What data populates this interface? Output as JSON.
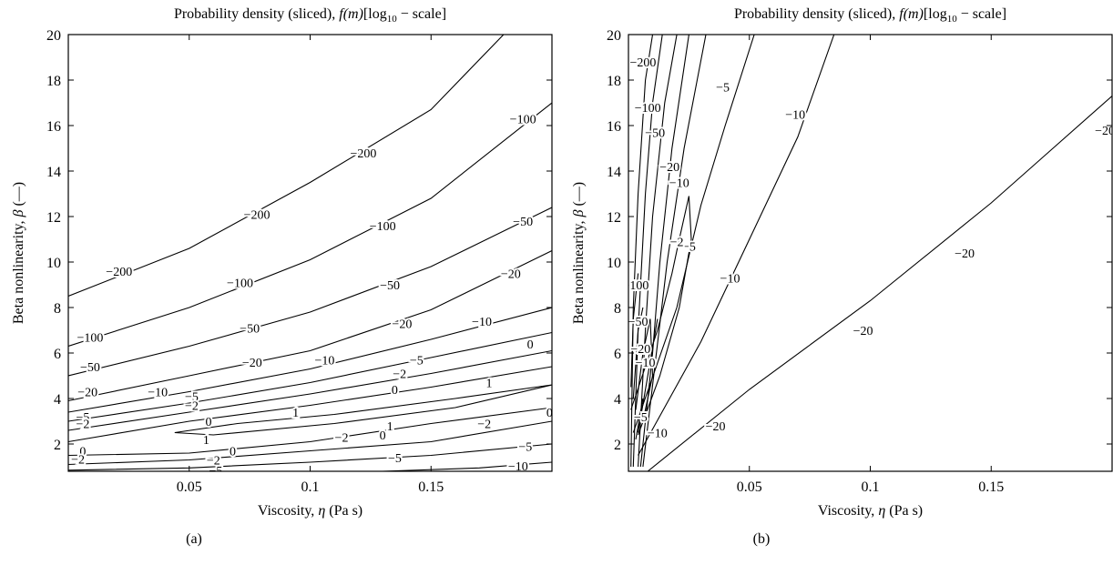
{
  "chart_data": [
    {
      "type": "contour",
      "panel_label": "(a)",
      "title_prefix": "Probability density (sliced), ",
      "title_math": "f(m)",
      "title_bracket_open": "[log",
      "title_subscript": "10",
      "title_suffix": " − scale]",
      "xlabel_prefix": "Viscosity, ",
      "xlabel_symbol": "η",
      "xlabel_suffix": " (Pa s)",
      "ylabel_prefix": "Beta nonlinearity, ",
      "ylabel_symbol": "β",
      "ylabel_suffix": " (—)",
      "xlim": [
        0.0,
        0.2
      ],
      "ylim": [
        0.8,
        20
      ],
      "xticks": [
        0.05,
        0.1,
        0.15
      ],
      "yticks": [
        2,
        4,
        6,
        8,
        10,
        12,
        14,
        16,
        18,
        20
      ],
      "contours": [
        {
          "level": "−200",
          "points": [
            [
              0.0,
              8.5
            ],
            [
              0.05,
              10.6
            ],
            [
              0.1,
              13.5
            ],
            [
              0.15,
              16.7
            ],
            [
              0.18,
              20.0
            ]
          ],
          "labels": [
            [
              0.021,
              9.6
            ],
            [
              0.078,
              12.1
            ],
            [
              0.122,
              14.8
            ]
          ]
        },
        {
          "level": "−100",
          "points": [
            [
              0.0,
              6.3
            ],
            [
              0.05,
              8.0
            ],
            [
              0.1,
              10.1
            ],
            [
              0.15,
              12.8
            ],
            [
              0.2,
              17.0
            ]
          ],
          "labels": [
            [
              0.009,
              6.7
            ],
            [
              0.071,
              9.1
            ],
            [
              0.13,
              11.6
            ],
            [
              0.188,
              16.3
            ]
          ]
        },
        {
          "level": "−50",
          "points": [
            [
              0.0,
              5.0
            ],
            [
              0.05,
              6.3
            ],
            [
              0.1,
              7.8
            ],
            [
              0.15,
              9.8
            ],
            [
              0.2,
              12.4
            ]
          ],
          "labels": [
            [
              0.009,
              5.4
            ],
            [
              0.075,
              7.1
            ],
            [
              0.133,
              9.0
            ],
            [
              0.188,
              11.8
            ]
          ]
        },
        {
          "level": "−20",
          "points": [
            [
              0.0,
              3.9
            ],
            [
              0.05,
              5.0
            ],
            [
              0.1,
              6.1
            ],
            [
              0.15,
              7.9
            ],
            [
              0.2,
              10.5
            ]
          ],
          "labels": [
            [
              0.008,
              4.3
            ],
            [
              0.076,
              5.6
            ],
            [
              0.138,
              7.3
            ],
            [
              0.183,
              9.5
            ]
          ]
        },
        {
          "level": "−10",
          "points": [
            [
              0.0,
              3.4
            ],
            [
              0.05,
              4.3
            ],
            [
              0.1,
              5.3
            ],
            [
              0.15,
              6.6
            ],
            [
              0.2,
              8.0
            ]
          ],
          "labels": [
            [
              0.037,
              4.3
            ],
            [
              0.106,
              5.7
            ],
            [
              0.171,
              7.4
            ]
          ]
        },
        {
          "level": "−5",
          "points": [
            [
              0.0,
              3.0
            ],
            [
              0.05,
              3.8
            ],
            [
              0.1,
              4.7
            ],
            [
              0.15,
              5.8
            ],
            [
              0.2,
              6.9
            ]
          ],
          "labels": [
            [
              0.006,
              3.2
            ],
            [
              0.051,
              4.1
            ],
            [
              0.144,
              5.7
            ]
          ]
        },
        {
          "level": "−2",
          "points": [
            [
              0.0,
              2.6
            ],
            [
              0.05,
              3.4
            ],
            [
              0.1,
              4.2
            ],
            [
              0.15,
              5.1
            ],
            [
              0.2,
              6.1
            ]
          ],
          "labels": [
            [
              0.006,
              2.9
            ],
            [
              0.051,
              3.7
            ],
            [
              0.137,
              5.1
            ]
          ]
        },
        {
          "level": "0",
          "points": [
            [
              0.0,
              2.1
            ],
            [
              0.05,
              3.0
            ],
            [
              0.1,
              3.7
            ],
            [
              0.15,
              4.5
            ],
            [
              0.2,
              5.4
            ]
          ],
          "labels": [
            [
              0.058,
              3.0
            ],
            [
              0.135,
              4.4
            ],
            [
              0.191,
              6.4
            ]
          ]
        },
        {
          "level": "1",
          "points": [
            [
              0.044,
              2.5
            ],
            [
              0.07,
              2.9
            ],
            [
              0.11,
              3.3
            ],
            [
              0.16,
              4.0
            ],
            [
              0.2,
              4.6
            ],
            [
              0.16,
              3.6
            ],
            [
              0.11,
              2.9
            ],
            [
              0.06,
              2.4
            ],
            [
              0.044,
              2.5
            ]
          ],
          "labels": [
            [
              0.057,
              2.2
            ],
            [
              0.094,
              3.4
            ],
            [
              0.133,
              2.8
            ],
            [
              0.174,
              4.7
            ]
          ]
        },
        {
          "level": "0",
          "points": [
            [
              0.0,
              1.5
            ],
            [
              0.05,
              1.6
            ],
            [
              0.1,
              2.1
            ],
            [
              0.15,
              2.9
            ],
            [
              0.2,
              3.6
            ]
          ],
          "labels": [
            [
              0.006,
              1.7
            ],
            [
              0.068,
              1.7
            ],
            [
              0.13,
              2.4
            ],
            [
              0.199,
              3.4
            ]
          ]
        },
        {
          "level": "−2",
          "points": [
            [
              0.0,
              1.1
            ],
            [
              0.05,
              1.3
            ],
            [
              0.1,
              1.7
            ],
            [
              0.15,
              2.1
            ],
            [
              0.2,
              3.0
            ]
          ],
          "labels": [
            [
              0.004,
              1.35
            ],
            [
              0.06,
              1.3
            ],
            [
              0.113,
              2.3
            ],
            [
              0.172,
              2.9
            ]
          ]
        },
        {
          "level": "−5",
          "points": [
            [
              0.0,
              0.85
            ],
            [
              0.05,
              0.95
            ],
            [
              0.1,
              1.2
            ],
            [
              0.15,
              1.5
            ],
            [
              0.2,
              2.0
            ]
          ],
          "labels": [
            [
              0.061,
              0.85
            ],
            [
              0.135,
              1.4
            ],
            [
              0.189,
              1.9
            ]
          ]
        },
        {
          "level": "−10",
          "points": [
            [
              0.13,
              0.8
            ],
            [
              0.17,
              0.95
            ],
            [
              0.2,
              1.2
            ]
          ],
          "labels": [
            [
              0.186,
              1.05
            ]
          ]
        }
      ]
    },
    {
      "type": "contour",
      "panel_label": "(b)",
      "title_prefix": "Probability density (sliced), ",
      "title_math": "f(m)",
      "title_bracket_open": "[log",
      "title_subscript": "10",
      "title_suffix": " − scale]",
      "xlabel_prefix": "Viscosity, ",
      "xlabel_symbol": "η",
      "xlabel_suffix": " (Pa s)",
      "ylabel_prefix": "Beta nonlinearity, ",
      "ylabel_symbol": "β",
      "ylabel_suffix": " (—)",
      "xlim": [
        0.0,
        0.2
      ],
      "ylim": [
        0.8,
        20
      ],
      "xticks": [
        0.05,
        0.1,
        0.15
      ],
      "yticks": [
        2,
        4,
        6,
        8,
        10,
        12,
        14,
        16,
        18,
        20
      ],
      "contours": [
        {
          "level": "−20",
          "points": [
            [
              0.008,
              0.8
            ],
            [
              0.05,
              4.4
            ],
            [
              0.1,
              8.3
            ],
            [
              0.15,
              12.6
            ],
            [
              0.2,
              17.3
            ]
          ],
          "labels": [
            [
              0.036,
              2.8
            ],
            [
              0.097,
              7.0
            ],
            [
              0.139,
              10.4
            ],
            [
              0.197,
              15.8
            ]
          ]
        },
        {
          "level": "−10",
          "points": [
            [
              0.004,
              1.5
            ],
            [
              0.03,
              6.5
            ],
            [
              0.05,
              11.0
            ],
            [
              0.07,
              15.5
            ],
            [
              0.085,
              20.0
            ]
          ],
          "labels": [
            [
              0.012,
              2.5
            ],
            [
              0.042,
              9.3
            ],
            [
              0.069,
              16.5
            ]
          ]
        },
        {
          "level": "−5",
          "points": [
            [
              0.002,
              2.5
            ],
            [
              0.02,
              8.0
            ],
            [
              0.03,
              12.5
            ],
            [
              0.04,
              16.0
            ],
            [
              0.052,
              20.0
            ]
          ],
          "labels": [
            [
              0.025,
              10.7
            ],
            [
              0.039,
              17.7
            ]
          ]
        },
        {
          "level": "−2",
          "points": [
            [
              0.001,
              3.5
            ],
            [
              0.012,
              7.0
            ],
            [
              0.018,
              9.5
            ],
            [
              0.021,
              11.0
            ],
            [
              0.025,
              12.9
            ],
            [
              0.026,
              11.0
            ],
            [
              0.021,
              8.0
            ],
            [
              0.013,
              5.0
            ],
            [
              0.004,
              2.4
            ]
          ],
          "labels": [
            [
              0.02,
              10.9
            ]
          ]
        },
        {
          "level": "−10",
          "points": [
            [
              0.006,
              1.0
            ],
            [
              0.011,
              5.5
            ],
            [
              0.016,
              10.0
            ],
            [
              0.023,
              15.0
            ],
            [
              0.032,
              20.0
            ]
          ],
          "labels": [
            [
              0.021,
              13.5
            ]
          ]
        },
        {
          "level": "−20",
          "points": [
            [
              0.005,
              1.0
            ],
            [
              0.01,
              6.0
            ],
            [
              0.013,
              10.0
            ],
            [
              0.018,
              15.0
            ],
            [
              0.025,
              20.0
            ]
          ],
          "labels": [
            [
              0.017,
              14.2
            ]
          ]
        },
        {
          "level": "−50",
          "points": [
            [
              0.004,
              1.0
            ],
            [
              0.007,
              7.0
            ],
            [
              0.01,
              12.0
            ],
            [
              0.015,
              17.0
            ],
            [
              0.02,
              20.0
            ]
          ],
          "labels": [
            [
              0.011,
              15.7
            ]
          ]
        },
        {
          "level": "−100",
          "points": [
            [
              0.002,
              1.0
            ],
            [
              0.004,
              7.0
            ],
            [
              0.007,
              13.0
            ],
            [
              0.01,
              17.0
            ],
            [
              0.014,
              20.0
            ]
          ],
          "labels": [
            [
              0.008,
              16.8
            ]
          ]
        },
        {
          "level": "−200",
          "points": [
            [
              0.001,
              1.0
            ],
            [
              0.002,
              8.0
            ],
            [
              0.004,
              13.0
            ],
            [
              0.007,
              18.0
            ],
            [
              0.01,
              20.0
            ]
          ],
          "labels": [
            [
              0.006,
              18.8
            ]
          ]
        },
        {
          "level": "−50",
          "points": [
            [
              0.002,
              4.0
            ],
            [
              0.004,
              7.0
            ],
            [
              0.006,
              8.0
            ]
          ],
          "labels": [
            [
              0.004,
              7.4
            ]
          ]
        },
        {
          "level": "−100",
          "points": [
            [
              0.001,
              4.5
            ],
            [
              0.002,
              7.5
            ],
            [
              0.004,
              9.5
            ]
          ],
          "labels": [
            [
              0.003,
              9.0
            ]
          ]
        },
        {
          "level": "−20",
          "points": [
            [
              0.003,
              3.5
            ],
            [
              0.006,
              6.0
            ],
            [
              0.009,
              7.5
            ],
            [
              0.01,
              5.0
            ],
            [
              0.006,
              3.0
            ]
          ],
          "labels": [
            [
              0.005,
              6.2
            ]
          ]
        },
        {
          "level": "−10",
          "points": [
            [
              0.004,
              2.5
            ],
            [
              0.008,
              5.0
            ],
            [
              0.012,
              7.5
            ]
          ],
          "labels": [
            [
              0.007,
              5.6
            ]
          ]
        },
        {
          "level": "−5",
          "points": [
            [
              0.003,
              2.2
            ],
            [
              0.006,
              4.0
            ]
          ],
          "labels": [
            [
              0.005,
              3.2
            ]
          ]
        }
      ]
    }
  ]
}
